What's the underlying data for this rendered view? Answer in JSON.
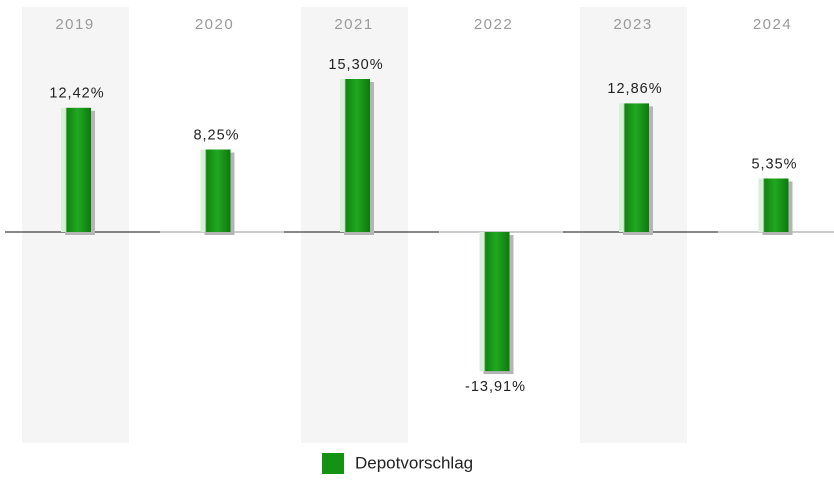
{
  "chart_data": {
    "type": "bar",
    "categories": [
      "2019",
      "2020",
      "2021",
      "2022",
      "2023",
      "2024"
    ],
    "series": [
      {
        "name": "Depotvorschlag",
        "color": "#139213",
        "values": [
          12.42,
          8.25,
          15.3,
          -13.91,
          12.86,
          5.35
        ],
        "value_labels": [
          "12,42%",
          "8,25%",
          "15,30%",
          "-13,91%",
          "12,86%",
          "5,35%"
        ]
      }
    ]
  }
}
